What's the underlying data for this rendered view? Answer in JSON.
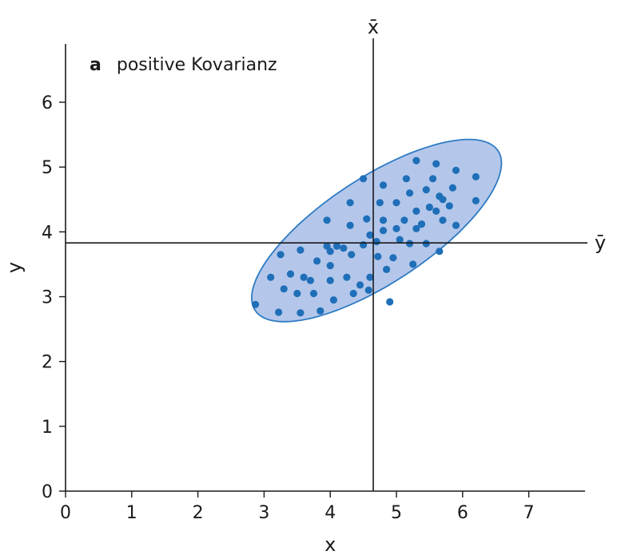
{
  "chart_data": {
    "type": "scatter",
    "title_letter": "a",
    "title": "positive Kovarianz",
    "xlabel": "x",
    "ylabel": "y",
    "xlim": [
      0,
      7.85
    ],
    "ylim": [
      0,
      6.9
    ],
    "xticks": [
      0,
      1,
      2,
      3,
      4,
      5,
      6,
      7
    ],
    "yticks": [
      0,
      1,
      2,
      3,
      4,
      5,
      6
    ],
    "grid": false,
    "mean_x": {
      "value": 4.65,
      "label": "x̄"
    },
    "mean_y": {
      "value": 3.83,
      "label": "ȳ"
    },
    "ellipse": {
      "center": [
        4.7,
        4.02
      ],
      "semi_major": 2.21,
      "semi_minor": 0.81,
      "angle_deg": 34
    },
    "colors": {
      "points": "#1f6fb8",
      "ellipse_fill": "#a7bde6",
      "ellipse_stroke": "#2e7bc4",
      "axes": "#1a1a1a"
    },
    "points": [
      [
        2.87,
        2.88
      ],
      [
        3.1,
        3.3
      ],
      [
        3.22,
        2.76
      ],
      [
        3.25,
        3.65
      ],
      [
        3.3,
        3.12
      ],
      [
        3.4,
        3.35
      ],
      [
        3.5,
        3.05
      ],
      [
        3.55,
        2.75
      ],
      [
        3.55,
        3.72
      ],
      [
        3.6,
        3.3
      ],
      [
        3.7,
        3.25
      ],
      [
        3.75,
        3.05
      ],
      [
        3.8,
        3.55
      ],
      [
        3.85,
        2.78
      ],
      [
        3.95,
        4.18
      ],
      [
        3.95,
        3.78
      ],
      [
        4.0,
        3.7
      ],
      [
        4.0,
        3.48
      ],
      [
        4.0,
        3.25
      ],
      [
        4.05,
        2.95
      ],
      [
        4.1,
        3.78
      ],
      [
        4.2,
        3.75
      ],
      [
        4.25,
        3.3
      ],
      [
        4.3,
        4.45
      ],
      [
        4.3,
        4.1
      ],
      [
        4.32,
        3.65
      ],
      [
        4.35,
        3.05
      ],
      [
        4.45,
        3.18
      ],
      [
        4.5,
        4.82
      ],
      [
        4.5,
        3.8
      ],
      [
        4.55,
        4.2
      ],
      [
        4.58,
        3.1
      ],
      [
        4.6,
        3.95
      ],
      [
        4.6,
        3.3
      ],
      [
        4.7,
        3.85
      ],
      [
        4.72,
        3.62
      ],
      [
        4.75,
        4.45
      ],
      [
        4.8,
        4.72
      ],
      [
        4.8,
        4.18
      ],
      [
        4.8,
        4.02
      ],
      [
        4.85,
        3.42
      ],
      [
        4.9,
        2.92
      ],
      [
        4.95,
        3.6
      ],
      [
        5.0,
        4.45
      ],
      [
        5.0,
        4.05
      ],
      [
        5.05,
        3.88
      ],
      [
        5.12,
        4.18
      ],
      [
        5.15,
        4.82
      ],
      [
        5.2,
        4.6
      ],
      [
        5.2,
        3.82
      ],
      [
        5.25,
        3.5
      ],
      [
        5.3,
        5.1
      ],
      [
        5.3,
        4.32
      ],
      [
        5.3,
        4.05
      ],
      [
        5.38,
        4.12
      ],
      [
        5.45,
        4.65
      ],
      [
        5.45,
        3.82
      ],
      [
        5.5,
        4.38
      ],
      [
        5.55,
        4.82
      ],
      [
        5.6,
        5.05
      ],
      [
        5.6,
        4.32
      ],
      [
        5.65,
        4.55
      ],
      [
        5.65,
        3.7
      ],
      [
        5.7,
        4.5
      ],
      [
        5.7,
        4.18
      ],
      [
        5.8,
        4.4
      ],
      [
        5.85,
        4.68
      ],
      [
        5.9,
        4.95
      ],
      [
        5.9,
        4.1
      ],
      [
        6.2,
        4.85
      ],
      [
        6.2,
        4.48
      ]
    ]
  }
}
